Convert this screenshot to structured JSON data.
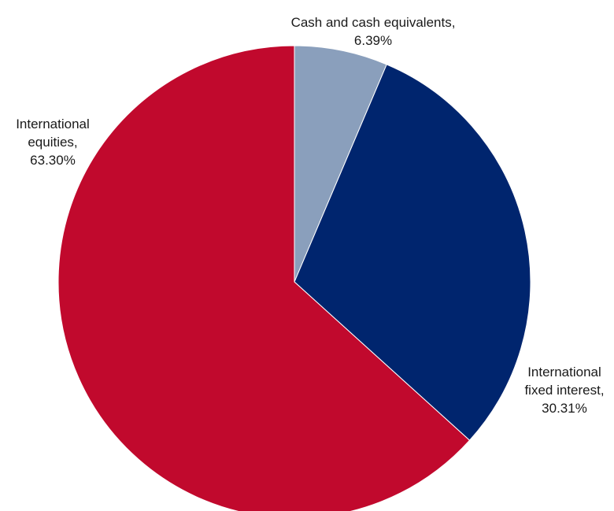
{
  "chart_data": {
    "type": "pie",
    "slices": [
      {
        "name": "Cash and cash equivalents",
        "value": 6.39,
        "label_lines": [
          "Cash and cash equivalents,",
          "6.39%"
        ],
        "color": "#8a9fbc"
      },
      {
        "name": "International fixed interest",
        "value": 30.31,
        "label_lines": [
          "International",
          "fixed interest,",
          "30.31%"
        ],
        "color": "#00256e"
      },
      {
        "name": "International equities",
        "value": 63.3,
        "label_lines": [
          "International",
          "equities,",
          "63.30%"
        ],
        "color": "#c1092d"
      }
    ],
    "start_angle": "12 o'clock",
    "direction": "clockwise",
    "legend": "none"
  }
}
